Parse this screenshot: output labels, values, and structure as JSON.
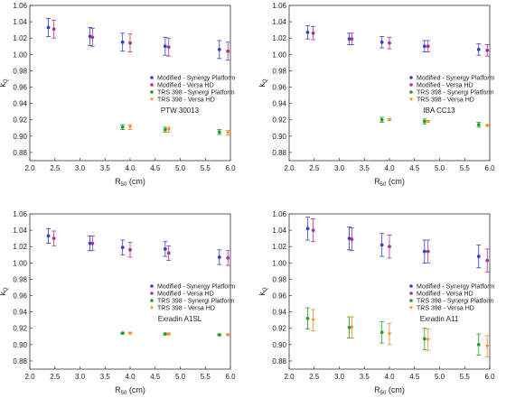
{
  "figure": {
    "x_axis_label_main": "R",
    "x_axis_label_sub": "50",
    "x_axis_label_unit": " (cm)",
    "y_axis_label_main": "k",
    "y_axis_label_sub": "Q",
    "legend": [
      {
        "label": "Modified - Synergy Platform",
        "color": "#3a3ad0",
        "marker": "circle"
      },
      {
        "label": "Modified - Versa HD",
        "color": "#b0309a",
        "marker": "circle"
      },
      {
        "label": "TRS 398 - Synergi Platform",
        "color": "#22a022",
        "marker": "circle"
      },
      {
        "label": "TRS 398 - Versa HD",
        "color": "#f28a1e",
        "marker": "triangle"
      }
    ]
  },
  "chart_data": [
    {
      "type": "scatter",
      "annotation": "PTW 30013",
      "xlim": [
        2.0,
        6.0
      ],
      "ylim": [
        0.87,
        1.06
      ],
      "xticks": [
        "2.0",
        "2.5",
        "3.0",
        "3.5",
        "4.0",
        "4.5",
        "5.0",
        "5.5",
        "6.0"
      ],
      "yticks": [
        "0.88",
        "0.90",
        "0.92",
        "0.94",
        "0.96",
        "0.98",
        "1.00",
        "1.02",
        "1.04",
        "1.06"
      ],
      "series": [
        {
          "name": "Modified - Synergy Platform",
          "x": [
            2.37,
            3.2,
            3.85,
            4.7,
            5.78
          ],
          "y": [
            1.033,
            1.022,
            1.015,
            1.01,
            1.006
          ],
          "err": [
            0.011,
            0.011,
            0.011,
            0.011,
            0.011
          ]
        },
        {
          "name": "Modified - Versa HD",
          "x": [
            2.48,
            3.25,
            4.0,
            4.77,
            5.95
          ],
          "y": [
            1.031,
            1.021,
            1.014,
            1.009,
            1.004
          ],
          "err": [
            0.011,
            0.011,
            0.011,
            0.011,
            0.011
          ]
        },
        {
          "name": "TRS 398 - Synergi Platform",
          "x": [
            3.85,
            4.7,
            5.78
          ],
          "y": [
            0.911,
            0.908,
            0.905
          ],
          "err": [
            0.003,
            0.003,
            0.003
          ]
        },
        {
          "name": "TRS 398 - Versa HD",
          "x": [
            4.0,
            4.77,
            5.95
          ],
          "y": [
            0.911,
            0.908,
            0.904
          ],
          "err": [
            0.003,
            0.003,
            0.003
          ]
        }
      ]
    },
    {
      "type": "scatter",
      "annotation": "IBA CC13",
      "xlim": [
        2.0,
        6.0
      ],
      "ylim": [
        0.87,
        1.06
      ],
      "xticks": [
        "2.0",
        "2.5",
        "3.0",
        "3.5",
        "4.0",
        "4.5",
        "5.0",
        "5.5",
        "6.0"
      ],
      "yticks": [
        "0.88",
        "0.90",
        "0.92",
        "0.94",
        "0.96",
        "0.98",
        "1.00",
        "1.02",
        "1.04",
        "1.06"
      ],
      "series": [
        {
          "name": "Modified - Synergy Platform",
          "x": [
            2.37,
            3.2,
            3.85,
            4.7,
            5.78
          ],
          "y": [
            1.027,
            1.019,
            1.015,
            1.01,
            1.006
          ],
          "err": [
            0.008,
            0.007,
            0.007,
            0.007,
            0.007
          ]
        },
        {
          "name": "Modified - Versa HD",
          "x": [
            2.48,
            3.25,
            4.0,
            4.77,
            5.95
          ],
          "y": [
            1.026,
            1.019,
            1.014,
            1.01,
            1.005
          ],
          "err": [
            0.008,
            0.007,
            0.007,
            0.007,
            0.007
          ]
        },
        {
          "name": "TRS 398 - Synergi Platform",
          "x": [
            3.85,
            4.7,
            5.78
          ],
          "y": [
            0.92,
            0.918,
            0.914
          ],
          "err": [
            0.003,
            0.003,
            0.003
          ]
        },
        {
          "name": "TRS 398 - Versa HD",
          "x": [
            4.0,
            4.77,
            5.95
          ],
          "y": [
            0.92,
            0.918,
            0.913
          ],
          "err": [
            0.001,
            0.001,
            0.001
          ]
        }
      ]
    },
    {
      "type": "scatter",
      "annotation": "Exradin A1SL",
      "xlim": [
        2.0,
        6.0
      ],
      "ylim": [
        0.87,
        1.06
      ],
      "xticks": [
        "2.0",
        "2.5",
        "3.0",
        "3.5",
        "4.0",
        "4.5",
        "5.0",
        "5.5",
        "6.0"
      ],
      "yticks": [
        "0.88",
        "0.90",
        "0.92",
        "0.94",
        "0.96",
        "0.98",
        "1.00",
        "1.02",
        "1.04",
        "1.06"
      ],
      "series": [
        {
          "name": "Modified - Synergy Platform",
          "x": [
            2.37,
            3.2,
            3.85,
            4.7,
            5.78
          ],
          "y": [
            1.033,
            1.024,
            1.019,
            1.017,
            1.007
          ],
          "err": [
            0.009,
            0.009,
            0.009,
            0.009,
            0.009
          ]
        },
        {
          "name": "Modified - Versa HD",
          "x": [
            2.48,
            3.25,
            4.0,
            4.77,
            5.95
          ],
          "y": [
            1.03,
            1.024,
            1.016,
            1.012,
            1.006
          ],
          "err": [
            0.009,
            0.009,
            0.009,
            0.009,
            0.009
          ]
        },
        {
          "name": "TRS 398 - Synergi Platform",
          "x": [
            3.85,
            4.7,
            5.78
          ],
          "y": [
            0.914,
            0.913,
            0.912
          ],
          "err": [
            0.001,
            0.001,
            0.001
          ]
        },
        {
          "name": "TRS 398 - Versa HD",
          "x": [
            4.0,
            4.77,
            5.95
          ],
          "y": [
            0.914,
            0.913,
            0.912
          ],
          "err": [
            0.001,
            0.001,
            0.001
          ]
        }
      ]
    },
    {
      "type": "scatter",
      "annotation": "Exradin A11",
      "xlim": [
        2.0,
        6.0
      ],
      "ylim": [
        0.87,
        1.06
      ],
      "xticks": [
        "2.0",
        "2.5",
        "3.0",
        "3.5",
        "4.0",
        "4.5",
        "5.0",
        "5.5",
        "6.0"
      ],
      "yticks": [
        "0.88",
        "0.90",
        "0.92",
        "0.94",
        "0.96",
        "0.98",
        "1.00",
        "1.02",
        "1.04",
        "1.06"
      ],
      "series": [
        {
          "name": "Modified - Synergy Platform",
          "x": [
            2.37,
            3.2,
            3.85,
            4.7,
            5.78
          ],
          "y": [
            1.042,
            1.03,
            1.022,
            1.014,
            1.008
          ],
          "err": [
            0.014,
            0.014,
            0.014,
            0.014,
            0.014
          ]
        },
        {
          "name": "Modified - Versa HD",
          "x": [
            2.48,
            3.25,
            4.0,
            4.77,
            5.95
          ],
          "y": [
            1.04,
            1.029,
            1.02,
            1.014,
            1.003
          ],
          "err": [
            0.014,
            0.014,
            0.014,
            0.014,
            0.014
          ]
        },
        {
          "name": "TRS 398 - Synergi Platform",
          "x": [
            2.37,
            3.2,
            3.85,
            4.7,
            5.78
          ],
          "y": [
            0.932,
            0.921,
            0.915,
            0.907,
            0.9
          ],
          "err": [
            0.013,
            0.013,
            0.013,
            0.013,
            0.013
          ]
        },
        {
          "name": "TRS 398 - Versa HD",
          "x": [
            2.48,
            3.25,
            4.0,
            4.77,
            5.95
          ],
          "y": [
            0.93,
            0.921,
            0.913,
            0.906,
            0.898
          ],
          "err": [
            0.013,
            0.013,
            0.013,
            0.013,
            0.013
          ]
        }
      ]
    }
  ]
}
